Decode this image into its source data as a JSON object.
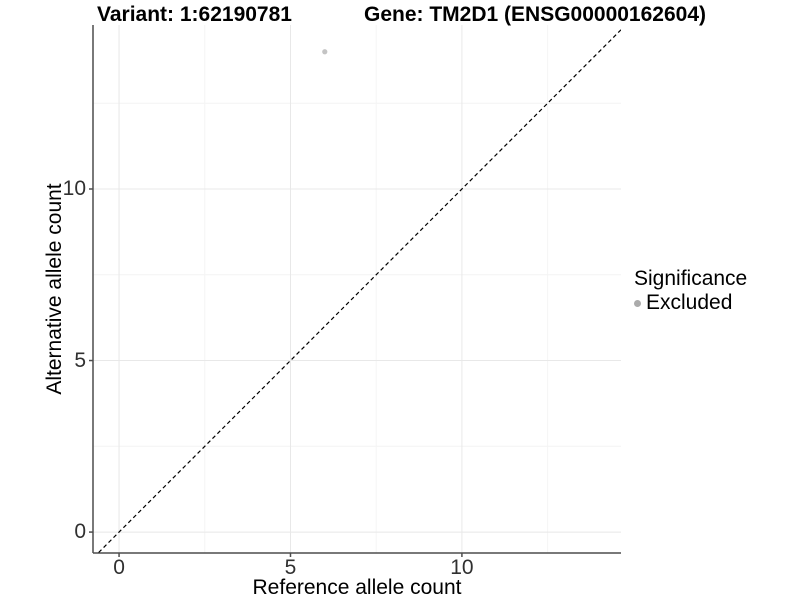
{
  "title": {
    "variant": "Variant: 1:62190781",
    "gene": "Gene: TM2D1 (ENSG00000162604)"
  },
  "axes": {
    "x_label": "Reference allele count",
    "y_label": "Alternative allele count"
  },
  "legend": {
    "title": "Significance",
    "entries": [
      {
        "label": "Excluded",
        "color": "#ababab"
      }
    ]
  },
  "colors": {
    "background": "#ffffff",
    "grid_major": "#e8e8e8",
    "grid_minor": "#f4f4f4",
    "axis_line": "#4d4d4d",
    "tick_text": "#303030",
    "point": "#c4c4c4",
    "reference_line": "#000000"
  },
  "chart_data": {
    "type": "scatter",
    "title": "Variant: 1:62190781    Gene: TM2D1 (ENSG00000162604)",
    "xlabel": "Reference allele count",
    "ylabel": "Alternative allele count",
    "xlim": [
      -0.76,
      14.64
    ],
    "ylim": [
      -0.61,
      14.78
    ],
    "x_ticks": [
      0,
      5,
      10
    ],
    "y_ticks": [
      0,
      5,
      10
    ],
    "x_minor_ticks": [
      2.5,
      7.5,
      12.5
    ],
    "y_minor_ticks": [
      2.5,
      7.5,
      12.5
    ],
    "grid": true,
    "series": [
      {
        "name": "Excluded",
        "color": "#c4c4c4",
        "points": [
          {
            "x": 6,
            "y": 14
          }
        ]
      }
    ],
    "reference_line": {
      "slope": 1,
      "intercept": 0,
      "style": "dashed",
      "color": "#000000"
    },
    "legend": {
      "title": "Significance",
      "position": "right",
      "entries": [
        "Excluded"
      ]
    }
  }
}
